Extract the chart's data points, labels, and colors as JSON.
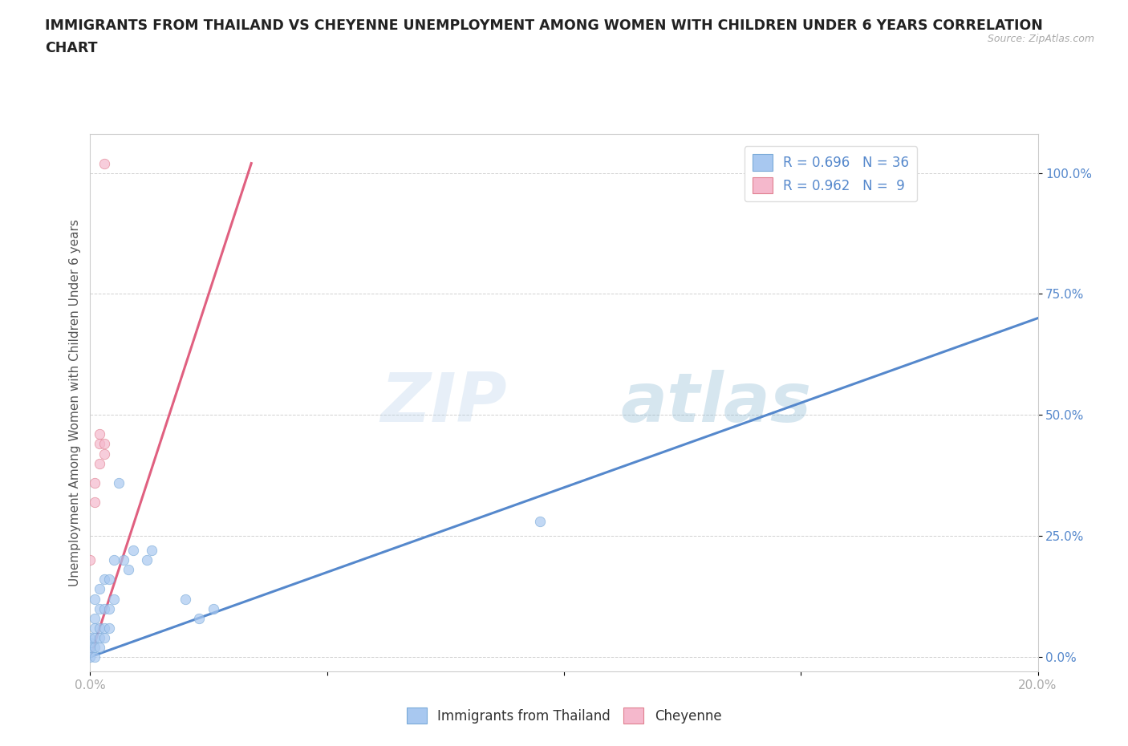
{
  "title_line1": "IMMIGRANTS FROM THAILAND VS CHEYENNE UNEMPLOYMENT AMONG WOMEN WITH CHILDREN UNDER 6 YEARS CORRELATION",
  "title_line2": "CHART",
  "source": "Source: ZipAtlas.com",
  "ylabel": "Unemployment Among Women with Children Under 6 years",
  "xlim": [
    0.0,
    0.2
  ],
  "ylim": [
    -0.03,
    1.08
  ],
  "yticks": [
    0.0,
    0.25,
    0.5,
    0.75,
    1.0
  ],
  "ytick_labels": [
    "0.0%",
    "25.0%",
    "50.0%",
    "75.0%",
    "100.0%"
  ],
  "xticks": [
    0.0,
    0.05,
    0.1,
    0.15,
    0.2
  ],
  "xtick_labels": [
    "0.0%",
    "",
    "",
    "",
    "20.0%"
  ],
  "blue_scatter_x": [
    0.0,
    0.0,
    0.0,
    0.0,
    0.0,
    0.001,
    0.001,
    0.001,
    0.001,
    0.001,
    0.001,
    0.002,
    0.002,
    0.002,
    0.002,
    0.002,
    0.003,
    0.003,
    0.003,
    0.003,
    0.004,
    0.004,
    0.004,
    0.005,
    0.005,
    0.006,
    0.007,
    0.008,
    0.009,
    0.012,
    0.013,
    0.02,
    0.023,
    0.026,
    0.095,
    0.16
  ],
  "blue_scatter_y": [
    0.0,
    0.01,
    0.02,
    0.03,
    0.04,
    0.0,
    0.02,
    0.04,
    0.06,
    0.08,
    0.12,
    0.02,
    0.04,
    0.06,
    0.1,
    0.14,
    0.04,
    0.06,
    0.1,
    0.16,
    0.06,
    0.1,
    0.16,
    0.12,
    0.2,
    0.36,
    0.2,
    0.18,
    0.22,
    0.2,
    0.22,
    0.12,
    0.08,
    0.1,
    0.28,
    1.0
  ],
  "pink_scatter_x": [
    0.0,
    0.001,
    0.001,
    0.002,
    0.002,
    0.002,
    0.003,
    0.003,
    0.003
  ],
  "pink_scatter_y": [
    0.2,
    0.32,
    0.36,
    0.4,
    0.44,
    0.46,
    0.42,
    0.44,
    1.02
  ],
  "blue_line_x": [
    0.0,
    0.2
  ],
  "blue_line_y": [
    0.0,
    0.7
  ],
  "pink_line_x": [
    0.0,
    0.034
  ],
  "pink_line_y": [
    0.0,
    1.02
  ],
  "blue_scatter_color": "#a8c8f0",
  "blue_scatter_edge": "#7aaad8",
  "pink_scatter_color": "#f5b8cc",
  "pink_scatter_edge": "#e08090",
  "blue_line_color": "#5588cc",
  "pink_line_color": "#e06080",
  "legend_blue_label": "R = 0.696   N = 36",
  "legend_pink_label": "R = 0.962   N =  9",
  "watermark_zip": "ZIP",
  "watermark_atlas": "atlas",
  "background_color": "#ffffff",
  "grid_color": "#cccccc",
  "title_color": "#222222",
  "axis_label_color": "#555555",
  "tick_label_color_x": "#aaaaaa",
  "tick_label_color_y": "#5588cc"
}
